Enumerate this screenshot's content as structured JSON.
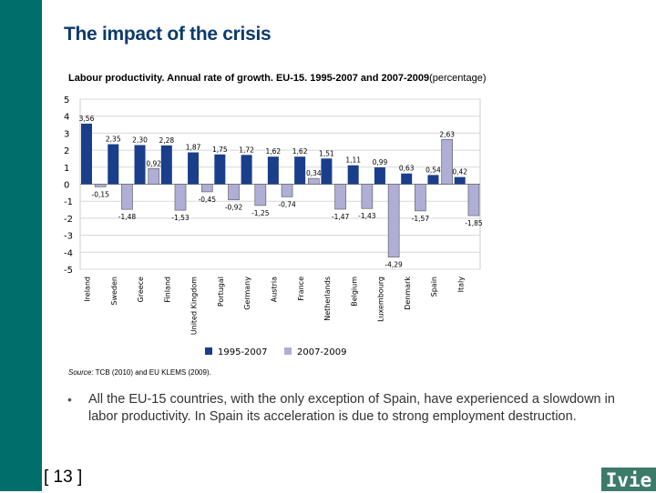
{
  "title": "The impact of the crisis",
  "chart_data": {
    "type": "bar",
    "title": "Labour productivity. Annual rate of growth. EU-15. 1995-2007 and 2007-2009",
    "title_suffix": "(percentage)",
    "categories": [
      "Ireland",
      "Sweden",
      "Greece",
      "Finland",
      "United Kingdom",
      "Portugal",
      "Germany",
      "Austria",
      "France",
      "Netherlands",
      "Belgium",
      "Luxembourg",
      "Denmark",
      "Spain",
      "Italy"
    ],
    "series": [
      {
        "name": "1995-2007",
        "color": "#1a3e8a",
        "values": [
          3.56,
          2.35,
          2.3,
          2.28,
          1.87,
          1.75,
          1.72,
          1.62,
          1.62,
          1.51,
          1.11,
          0.99,
          0.63,
          0.54,
          0.42
        ],
        "labels": [
          "3,56",
          "2,35",
          "2,30",
          "2,28",
          "1,87",
          "1,75",
          "1,72",
          "1,62",
          "1,62",
          "1,51",
          "1,11",
          "0,99",
          "0,63",
          "0,54",
          "0,42"
        ]
      },
      {
        "name": "2007-2009",
        "color": "#aeaed6",
        "values": [
          -0.15,
          -1.48,
          0.92,
          -1.53,
          -0.45,
          -0.92,
          -1.25,
          -0.74,
          0.34,
          -1.47,
          -1.43,
          -4.29,
          -1.57,
          2.63,
          -1.85
        ],
        "labels": [
          "-0,15",
          "-1,48",
          "0,92",
          "-1,53",
          "-0,45",
          "-0,92",
          "-1,25",
          "-0,74",
          "0,34",
          "-1,47",
          "-1,43",
          "-4,29",
          "-1,57",
          "2,63",
          "-1,85"
        ]
      }
    ],
    "ylim": [
      -5,
      5
    ],
    "yticks": [
      "5",
      "4",
      "3",
      "2",
      "1",
      "0",
      "-1",
      "-2",
      "-3",
      "-4",
      "-5"
    ],
    "grid": true,
    "legend": "bottom"
  },
  "source_label": "Source:",
  "source_text": " TCB (2010) and EU KLEMS (2009).",
  "bullet": "•",
  "bullet_text": "All the EU-15 countries, with the only exception of Spain, have experienced a slowdown in labor productivity. In Spain its acceleration is due to strong employment destruction.",
  "page_number": "[ 13 ]",
  "logo": "Ivie"
}
